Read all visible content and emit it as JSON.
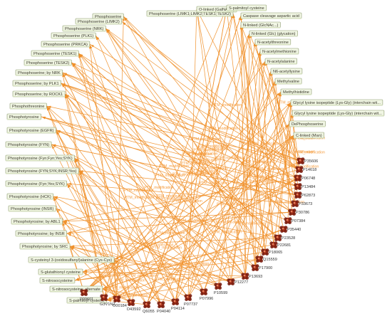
{
  "colors": {
    "edge": "#f0902a",
    "edge_label": "#f59a3a",
    "ptm_box_fill": "#f1f6e4",
    "ptm_box_stroke": "#8c9a6e",
    "protein_node": "#b03a22",
    "protein_node_dark": "#7a1e10"
  },
  "edge_label_text": "PTM_modification",
  "ptm_nodes": [
    "Phosphoserine (LIMK1;LIMK2;TESK1;TESK2)",
    "Phosphoserine",
    "O-linked (GalNAc...)",
    "S-palmitoyl cysteine",
    "Caspase cleavage aspartic acid",
    "Phosphoserine (LIMK2)",
    "N-linked (GlcNAc...)",
    "Phosphoserine (NRK)",
    "N-linked (Glc) (glycation)",
    "Phosphoserine (PLK1)",
    "N-acetylthreonine",
    "Phosphoserine (PRKCA)",
    "N-acetylmethionine",
    "Phosphoserine (TESK1)",
    "N-acetylalanine",
    "Phosphoserine (TESK2)",
    "N6-acetyllysine",
    "Phosphoserine; by NRK",
    "Methylvaline",
    "Phosphoserine; by PLK1",
    "Methylhistidine",
    "Phosphoserine; by ROCK1",
    "Glycyl lysine isopeptide (Lys-Gly) (interchain wit...",
    "Phosphothreonine",
    "Glycyl lysine isopeptide (Lys-Gly) (interchain wit...",
    "Phosphotyrosine",
    "DePhosphoserine",
    "Phosphotyrosine (EGFR)",
    "C-linked (Man)",
    "Phosphotyrosine (FYN)",
    "Phosphotyrosine (Fyn;Fyn;Yes;SYK)",
    "Phosphotyrosine (FYN;SYK;INSR;Yes)",
    "Phosphotyrosine (Fyn;Yes;SYK)",
    "Phosphotyrosine (HCK)",
    "Phosphotyrosine (INSR)",
    "Phosphotyrosine; by ABL1",
    "Phosphotyrosine; by INSR",
    "Phosphotyrosine; by SRC",
    "S-cysteinyl 3-(oxidosulfanyl)alanine (Cys-Cys)",
    "S-glutathionyl cysteine",
    "S-nitrosocysteine",
    "S-nitrosocysteine; alternate",
    "S-palmitoyl cysteine"
  ],
  "protein_nodes": [
    "P09601",
    "G3V1N2",
    "O00184",
    "D43592",
    "Q6055",
    "P04040",
    "P04114",
    "P07737",
    "P07996",
    "P10599",
    "P12277",
    "P13693",
    "P17900",
    "Q15559",
    "P18065",
    "P22681",
    "P23528",
    "P35440",
    "P07384",
    "P30786",
    "P33673",
    "P62873",
    "P13484",
    "P06748",
    "P14618",
    "P35606"
  ]
}
